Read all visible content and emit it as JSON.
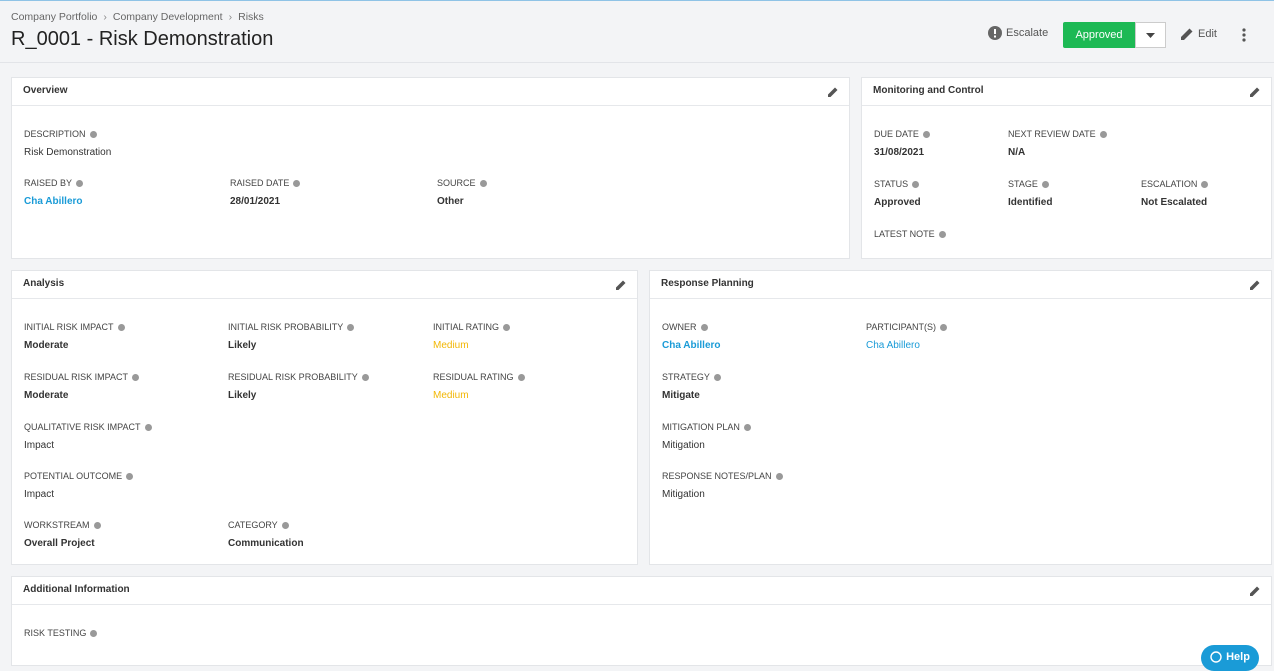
{
  "breadcrumb": [
    "Company Portfolio",
    "Company Development",
    "Risks"
  ],
  "title": "R_0001 - Risk Demonstration",
  "actions": {
    "escalate": "Escalate",
    "status": "Approved",
    "edit": "Edit"
  },
  "sections": [
    {
      "title": "Overview",
      "fields": [
        {
          "label": "DESCRIPTION",
          "value": "Risk Demonstration"
        },
        {
          "label": "RAISED BY",
          "value": "Cha Abillero"
        },
        {
          "label": "RAISED DATE",
          "value": "28/01/2021"
        },
        {
          "label": "SOURCE",
          "value": "Other"
        }
      ]
    },
    {
      "title": "Monitoring and Control",
      "fields": [
        {
          "label": "DUE DATE",
          "value": "31/08/2021"
        },
        {
          "label": "NEXT REVIEW DATE",
          "value": "N/A"
        },
        {
          "label": "STATUS",
          "value": "Approved"
        },
        {
          "label": "STAGE",
          "value": "Identified"
        },
        {
          "label": "ESCALATION",
          "value": "Not Escalated"
        },
        {
          "label": "LATEST NOTE"
        }
      ]
    },
    {
      "title": "Analysis",
      "fields": [
        {
          "label": "INITIAL RISK IMPACT",
          "value": "Moderate"
        },
        {
          "label": "INITIAL RISK PROBABILITY",
          "value": "Likely"
        },
        {
          "label": "INITIAL RATING",
          "value": "Medium"
        },
        {
          "label": "RESIDUAL RISK IMPACT",
          "value": "Moderate"
        },
        {
          "label": "RESIDUAL RISK PROBABILITY",
          "value": "Likely"
        },
        {
          "label": "RESIDUAL RATING",
          "value": "Medium"
        },
        {
          "label": "QUALITATIVE RISK IMPACT",
          "value": "Impact"
        },
        {
          "label": "POTENTIAL OUTCOME",
          "value": "Impact"
        },
        {
          "label": "WORKSTREAM",
          "value": "Overall Project"
        },
        {
          "label": "CATEGORY",
          "value": "Communication"
        }
      ]
    },
    {
      "title": "Response Planning",
      "fields": [
        {
          "label": "OWNER",
          "value": "Cha Abillero"
        },
        {
          "label": "PARTICIPANT(S)",
          "value": "Cha Abillero"
        },
        {
          "label": "STRATEGY",
          "value": "Mitigate"
        },
        {
          "label": "MITIGATION PLAN",
          "value": "Mitigation"
        },
        {
          "label": "RESPONSE NOTES/PLAN",
          "value": "Mitigation"
        }
      ]
    },
    {
      "title": "Additional Information",
      "fields": [
        {
          "label": "RISK TESTING"
        }
      ]
    }
  ],
  "help": "Help"
}
